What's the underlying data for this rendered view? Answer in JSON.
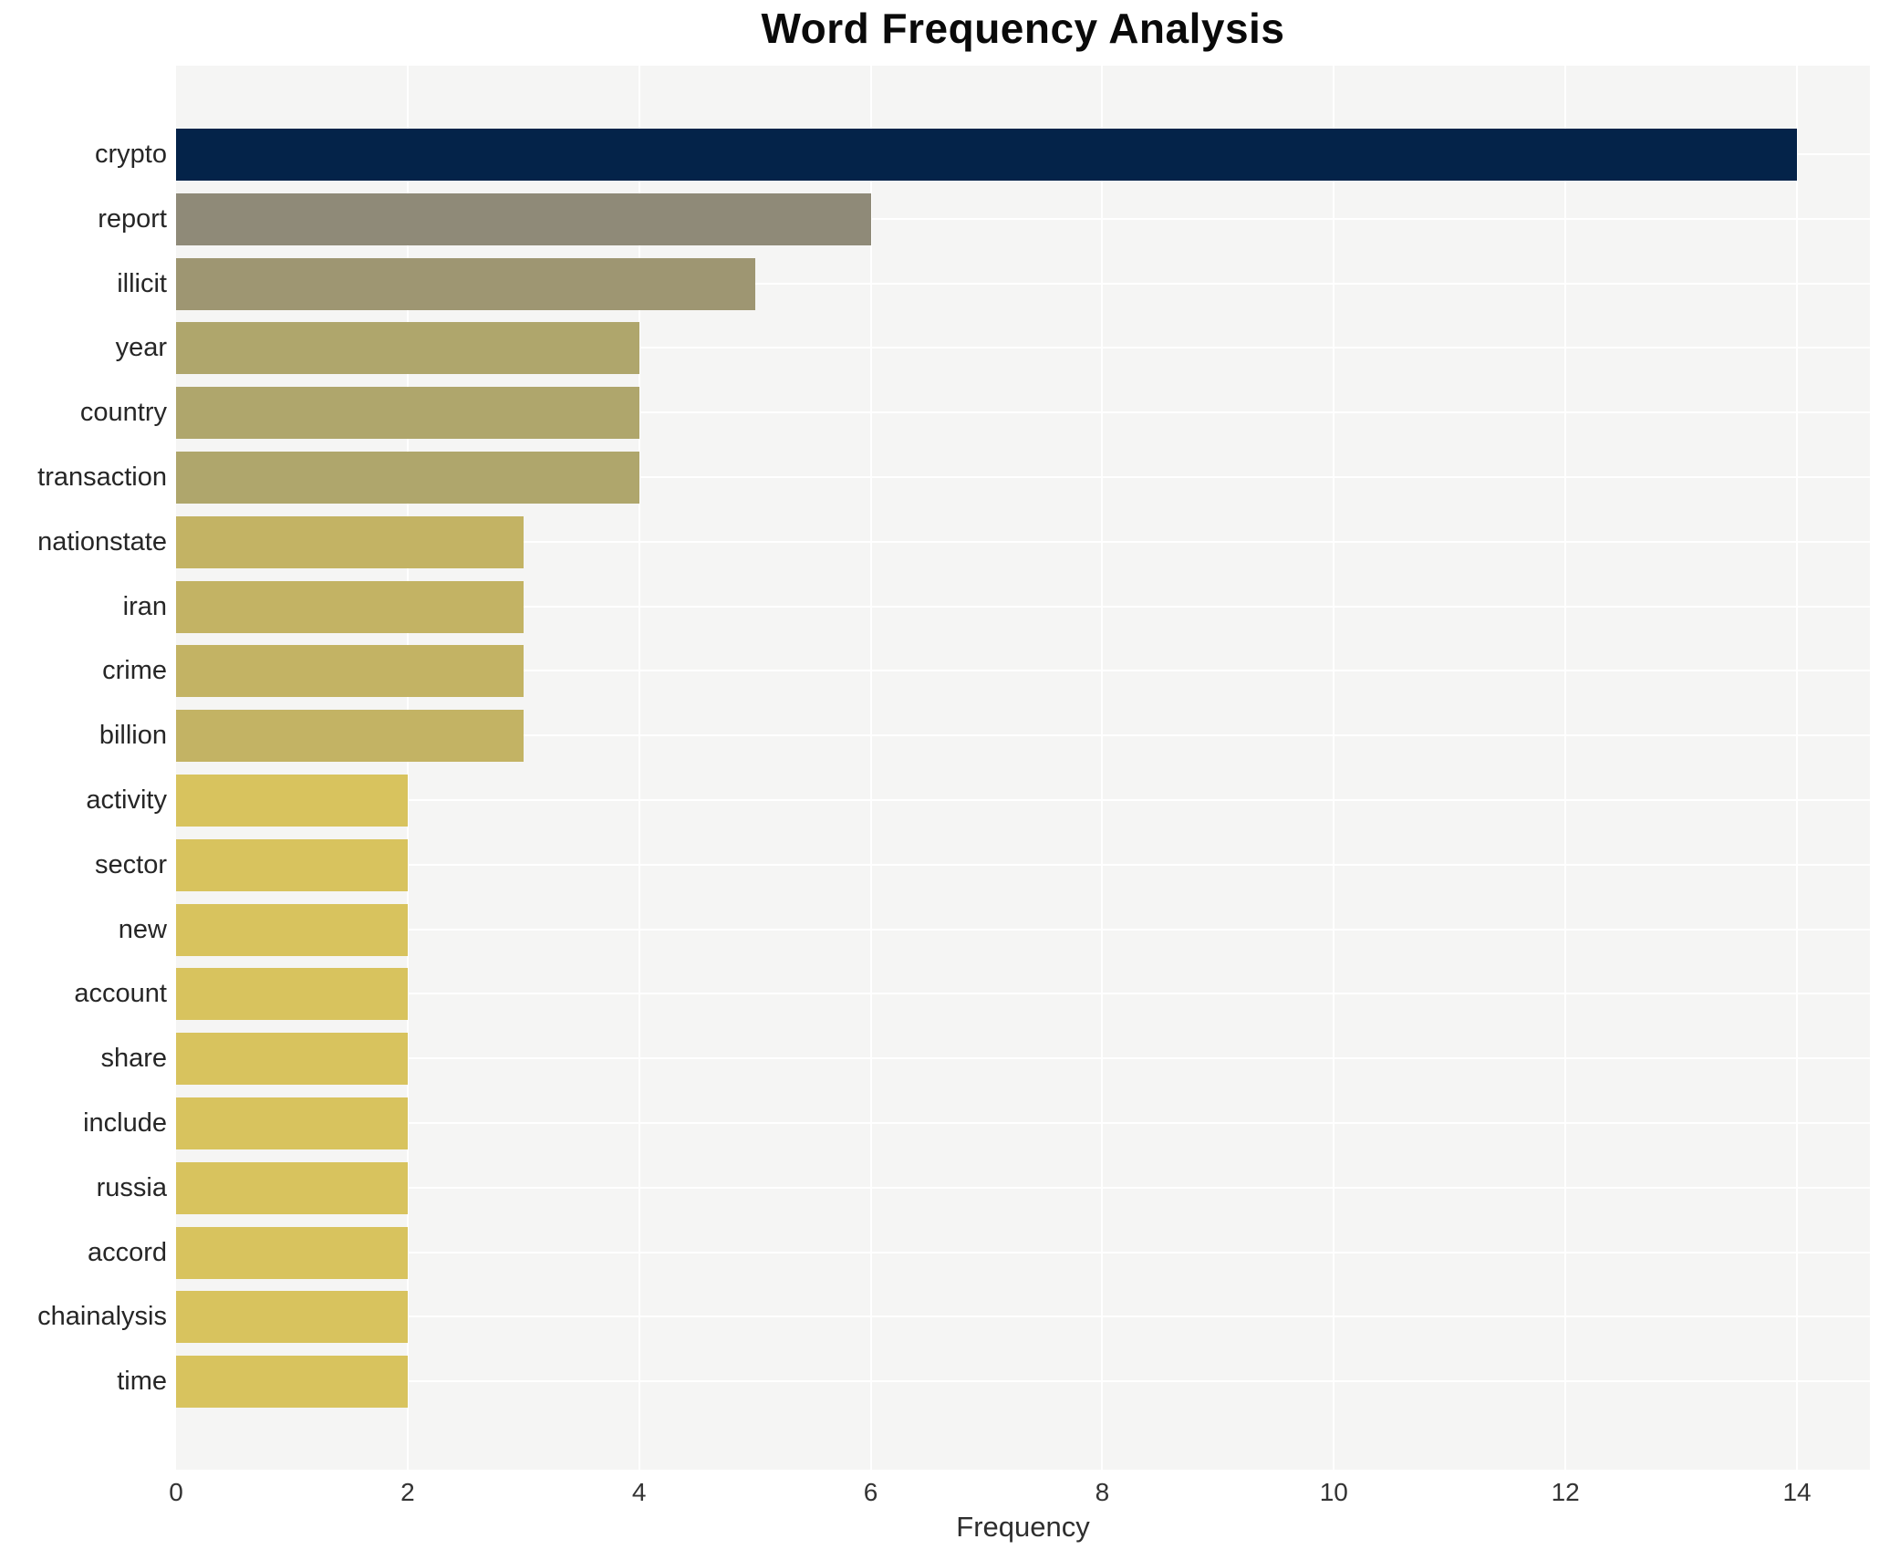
{
  "chart_data": {
    "type": "bar",
    "orientation": "horizontal",
    "title": "Word Frequency Analysis",
    "xlabel": "Frequency",
    "ylabel": "",
    "xlim": [
      0,
      14.63
    ],
    "xticks": [
      0,
      2,
      4,
      6,
      8,
      10,
      12,
      14
    ],
    "grid": true,
    "legend": "none",
    "categories": [
      "crypto",
      "report",
      "illicit",
      "year",
      "country",
      "transaction",
      "nationstate",
      "iran",
      "crime",
      "billion",
      "activity",
      "sector",
      "new",
      "account",
      "share",
      "include",
      "russia",
      "accord",
      "chainalysis",
      "time"
    ],
    "values": [
      14,
      6,
      5,
      4,
      4,
      4,
      3,
      3,
      3,
      3,
      2,
      2,
      2,
      2,
      2,
      2,
      2,
      2,
      2,
      2
    ],
    "bar_colors": [
      "#042349",
      "#8f8a78",
      "#9e9672",
      "#afa66c",
      "#afa66c",
      "#afa66c",
      "#c3b364",
      "#c3b364",
      "#c3b364",
      "#c3b364",
      "#d8c35e",
      "#d8c35e",
      "#d8c35e",
      "#d8c35e",
      "#d8c35e",
      "#d8c35e",
      "#d8c35e",
      "#d8c35e",
      "#d8c35e",
      "#d8c35e"
    ]
  },
  "appearance": {
    "plot_background": "#f5f5f4",
    "figure_background": "#ffffff",
    "grid_color": "#ffffff",
    "label_color": "#262626",
    "tick_color": "#333333",
    "title_color": "#0a0a0a"
  }
}
